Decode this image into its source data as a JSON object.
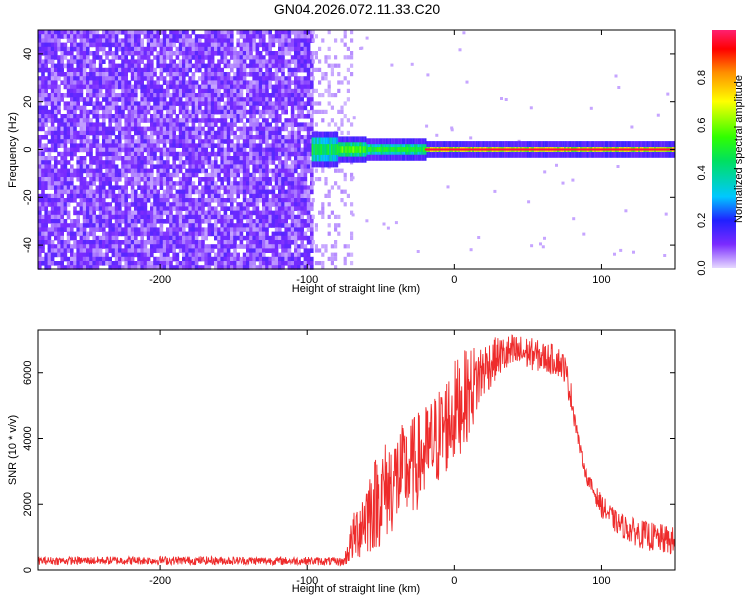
{
  "title": "GN04.2026.072.11.33.C20",
  "chart_data": [
    {
      "type": "heatmap",
      "xlabel": "Height of straight line (km)",
      "ylabel": "Frequency (Hz)",
      "xlim": [
        -283,
        150
      ],
      "ylim": [
        -50,
        50
      ],
      "xticks": [
        -200,
        -100,
        0,
        100
      ],
      "yticks": [
        -40,
        -20,
        0,
        20,
        40
      ],
      "colorbar": {
        "label": "Normalized spectral amplitude",
        "range": [
          0,
          1
        ],
        "ticks": [
          "0.0",
          "0.2",
          "0.4",
          "0.6",
          "0.8"
        ],
        "colors": [
          "#e6d9ff",
          "#7a2bff",
          "#2020ff",
          "#00c8ff",
          "#00e060",
          "#30ff00",
          "#ffff00",
          "#ff9000",
          "#ff0000",
          "#ff2070"
        ]
      },
      "regions": [
        {
          "x_range": [
            -283,
            -97
          ],
          "y_range": [
            -50,
            50
          ],
          "level": "noise, ~0.05-0.3"
        },
        {
          "x_range": [
            -97,
            -80
          ],
          "y_range": [
            -5,
            5
          ],
          "level": "~0.4-0.6"
        },
        {
          "x_range": [
            -80,
            -20
          ],
          "y_range": [
            -3,
            3
          ],
          "level": "~0.5-0.8"
        },
        {
          "x_range": [
            -20,
            150
          ],
          "y_range": [
            -1,
            1
          ],
          "level": "~0.9-1.0"
        }
      ]
    },
    {
      "type": "line",
      "xlabel": "Height of straight line (km)",
      "ylabel": "SNR (10 * v/v)",
      "xlim": [
        -283,
        150
      ],
      "ylim": [
        0,
        7300
      ],
      "xticks": [
        -200,
        -100,
        0,
        100
      ],
      "yticks": [
        0,
        2000,
        4000,
        6000
      ],
      "series": [
        {
          "color": "#ee2b2b",
          "envelope_x": [
            -283,
            -200,
            -100,
            -75,
            -70,
            -60,
            -50,
            -40,
            -30,
            -20,
            -10,
            0,
            10,
            20,
            30,
            40,
            50,
            60,
            70,
            75,
            80,
            85,
            90,
            100,
            110,
            120,
            130,
            140,
            150
          ],
          "envelope_low": [
            160,
            160,
            150,
            120,
            200,
            400,
            700,
            1200,
            1600,
            2000,
            2600,
            3200,
            4000,
            5200,
            5900,
            6000,
            6100,
            6000,
            5900,
            5700,
            4700,
            3600,
            2600,
            1600,
            1100,
            800,
            600,
            500,
            400
          ],
          "envelope_high": [
            400,
            420,
            400,
            380,
            1500,
            3000,
            3800,
            4300,
            4600,
            5000,
            5600,
            6400,
            6800,
            7000,
            7100,
            7200,
            7100,
            6950,
            6850,
            6600,
            5600,
            4000,
            3000,
            2300,
            1800,
            1600,
            1500,
            1400,
            1300
          ]
        }
      ]
    }
  ]
}
